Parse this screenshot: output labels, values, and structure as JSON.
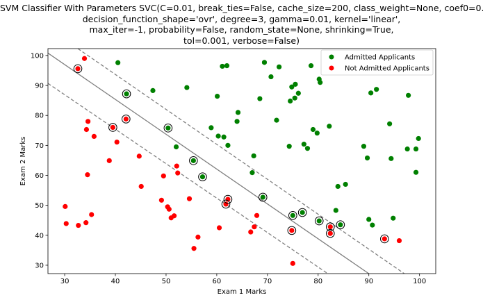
{
  "chart_data": {
    "type": "scatter",
    "title_lines": [
      "SVM Classifier With Parameters SVC(C=0.01, break_ties=False, cache_size=200, class_weight=None, coef0=0.0,",
      "decision_function_shape='ovr', degree=3, gamma=0.01, kernel='linear',",
      "max_iter=-1, probability=False, random_state=None, shrinking=True,",
      "tol=0.001, verbose=False)"
    ],
    "xlabel": "Exam 1 Marks",
    "ylabel": "Exam 2 Marks",
    "xlim": [
      26.7,
      103.2
    ],
    "ylim": [
      27.2,
      102.3
    ],
    "xticks": [
      30,
      40,
      50,
      60,
      70,
      80,
      90,
      100
    ],
    "yticks": [
      30,
      40,
      50,
      60,
      70,
      80,
      90,
      100
    ],
    "grid": false,
    "legend_position": "top-right",
    "series": [
      {
        "name": "Admitted Applicants",
        "color": "#008000",
        "points": [
          [
            40.5,
            97.6
          ],
          [
            42.2,
            87.2
          ],
          [
            47.4,
            88.3
          ],
          [
            50.4,
            75.8
          ],
          [
            52.0,
            69.5
          ],
          [
            54.1,
            89.3
          ],
          [
            55.4,
            64.9
          ],
          [
            57.2,
            59.5
          ],
          [
            58.9,
            75.9
          ],
          [
            60.1,
            86.4
          ],
          [
            60.3,
            73.1
          ],
          [
            61.1,
            96.4
          ],
          [
            61.4,
            72.8
          ],
          [
            62.0,
            96.6
          ],
          [
            62.2,
            70.0
          ],
          [
            64.0,
            78.0
          ],
          [
            64.2,
            81.0
          ],
          [
            67.0,
            60.9
          ],
          [
            67.3,
            66.5
          ],
          [
            68.5,
            85.6
          ],
          [
            69.1,
            52.7
          ],
          [
            69.4,
            97.7
          ],
          [
            70.7,
            92.9
          ],
          [
            71.8,
            78.4
          ],
          [
            72.3,
            96.2
          ],
          [
            74.3,
            69.7
          ],
          [
            74.5,
            84.8
          ],
          [
            74.8,
            89.5
          ],
          [
            75.0,
            46.6
          ],
          [
            75.4,
            85.8
          ],
          [
            75.5,
            90.4
          ],
          [
            76.1,
            87.4
          ],
          [
            76.9,
            47.6
          ],
          [
            77.2,
            70.4
          ],
          [
            77.9,
            69.0
          ],
          [
            78.6,
            96.6
          ],
          [
            79.0,
            75.3
          ],
          [
            79.8,
            74.1
          ],
          [
            80.2,
            44.8
          ],
          [
            80.2,
            92.1
          ],
          [
            80.4,
            91.0
          ],
          [
            82.2,
            76.4
          ],
          [
            83.5,
            48.3
          ],
          [
            83.9,
            56.3
          ],
          [
            84.4,
            43.5
          ],
          [
            85.4,
            57.0
          ],
          [
            89.0,
            69.7
          ],
          [
            89.7,
            65.8
          ],
          [
            90.0,
            45.3
          ],
          [
            90.4,
            87.5
          ],
          [
            90.7,
            43.4
          ],
          [
            91.5,
            88.7
          ],
          [
            94.1,
            77.2
          ],
          [
            94.4,
            65.6
          ],
          [
            94.8,
            45.7
          ],
          [
            97.6,
            68.8
          ],
          [
            97.8,
            86.7
          ],
          [
            99.3,
            68.8
          ],
          [
            99.3,
            61.0
          ],
          [
            99.8,
            72.3
          ]
        ]
      },
      {
        "name": "Not Admitted Applicants",
        "color": "#ff0000",
        "points": [
          [
            30.1,
            49.6
          ],
          [
            30.3,
            43.9
          ],
          [
            32.6,
            95.6
          ],
          [
            32.7,
            43.3
          ],
          [
            33.9,
            99.0
          ],
          [
            34.2,
            44.2
          ],
          [
            34.3,
            75.3
          ],
          [
            34.5,
            60.2
          ],
          [
            34.6,
            78.0
          ],
          [
            35.3,
            46.9
          ],
          [
            35.8,
            73.0
          ],
          [
            38.8,
            64.9
          ],
          [
            39.5,
            76.0
          ],
          [
            40.3,
            71.1
          ],
          [
            42.1,
            78.8
          ],
          [
            44.7,
            66.4
          ],
          [
            45.1,
            56.3
          ],
          [
            49.1,
            51.7
          ],
          [
            49.5,
            59.8
          ],
          [
            50.3,
            49.5
          ],
          [
            50.6,
            48.7
          ],
          [
            51.0,
            45.8
          ],
          [
            51.6,
            46.5
          ],
          [
            52.1,
            63.1
          ],
          [
            52.3,
            60.8
          ],
          [
            54.6,
            52.2
          ],
          [
            55.5,
            35.6
          ],
          [
            56.3,
            39.4
          ],
          [
            60.5,
            42.5
          ],
          [
            61.8,
            50.4
          ],
          [
            62.2,
            52.0
          ],
          [
            66.7,
            41.1
          ],
          [
            67.4,
            42.8
          ],
          [
            67.9,
            46.6
          ],
          [
            74.8,
            41.6
          ],
          [
            75.0,
            30.6
          ],
          [
            82.4,
            42.8
          ],
          [
            82.4,
            40.6
          ],
          [
            93.1,
            38.8
          ],
          [
            96.0,
            38.2
          ]
        ]
      }
    ],
    "support_vectors": [
      [
        32.6,
        95.6
      ],
      [
        39.5,
        76.0
      ],
      [
        42.1,
        78.8
      ],
      [
        42.2,
        87.2
      ],
      [
        50.4,
        75.8
      ],
      [
        55.4,
        64.9
      ],
      [
        57.2,
        59.5
      ],
      [
        61.8,
        50.4
      ],
      [
        62.2,
        52.0
      ],
      [
        69.1,
        52.7
      ],
      [
        74.8,
        41.6
      ],
      [
        75.0,
        46.6
      ],
      [
        76.9,
        47.6
      ],
      [
        80.2,
        44.8
      ],
      [
        82.4,
        42.8
      ],
      [
        82.4,
        40.6
      ],
      [
        84.4,
        43.5
      ],
      [
        93.1,
        38.8
      ]
    ],
    "lines": [
      {
        "kind": "decision_boundary",
        "style": "solid",
        "x": [
          26.7,
          90.0
        ],
        "y": [
          100.8,
          27.2
        ]
      },
      {
        "kind": "margin",
        "style": "dashed",
        "x": [
          32.6,
          97.0
        ],
        "y": [
          102.3,
          27.2
        ]
      },
      {
        "kind": "margin",
        "style": "dashed",
        "x": [
          26.7,
          81.9
        ],
        "y": [
          90.7,
          27.2
        ]
      }
    ],
    "colors": {
      "boundary": "#808080",
      "support_vector_ring": "#000000"
    }
  }
}
